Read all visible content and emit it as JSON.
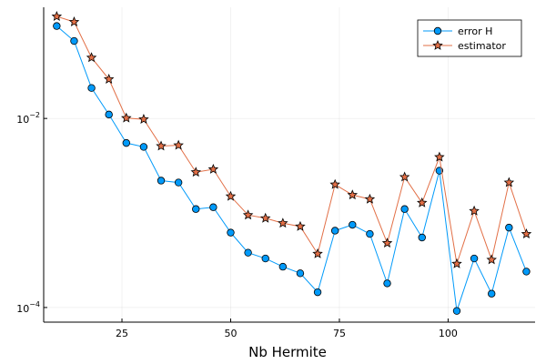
{
  "chart_data": {
    "type": "line",
    "title": "",
    "xlabel": "Nb Hermite",
    "ylabel": "",
    "xlim": [
      7,
      120
    ],
    "ylim": [
      7e-05,
      0.15
    ],
    "yscale": "log",
    "grid": true,
    "legend_position": "top-right",
    "x_ticks": [
      25,
      50,
      75,
      100
    ],
    "x_tick_labels": [
      "25",
      "50",
      "75",
      "100"
    ],
    "y_ticks": [
      0.0001,
      0.01
    ],
    "y_tick_labels": [
      {
        "base": "10",
        "exp": "−4"
      },
      {
        "base": "10",
        "exp": "−2"
      }
    ],
    "x": [
      10,
      14,
      18,
      22,
      26,
      30,
      34,
      38,
      42,
      46,
      50,
      54,
      58,
      62,
      66,
      70,
      74,
      78,
      82,
      86,
      90,
      94,
      98,
      102,
      106,
      110,
      114,
      118
    ],
    "series": [
      {
        "name": "error H",
        "color": "#009AFA",
        "marker": "circle",
        "values": [
          0.095,
          0.066,
          0.021,
          0.011,
          0.0055,
          0.005,
          0.0022,
          0.0021,
          0.0011,
          0.00115,
          0.00062,
          0.00038,
          0.00033,
          0.00027,
          0.00023,
          0.000145,
          0.00065,
          0.00075,
          0.0006,
          0.00018,
          0.0011,
          0.00055,
          0.0028,
          9.2e-05,
          0.00033,
          0.00014,
          0.0007,
          0.00024
        ]
      },
      {
        "name": "estimator",
        "color": "#E26F46",
        "marker": "star",
        "values": [
          0.12,
          0.105,
          0.044,
          0.026,
          0.0101,
          0.0098,
          0.0051,
          0.0052,
          0.0027,
          0.0029,
          0.0015,
          0.00095,
          0.00088,
          0.00078,
          0.00072,
          0.00037,
          0.002,
          0.00155,
          0.0014,
          0.00048,
          0.0024,
          0.00128,
          0.0039,
          0.00029,
          0.00105,
          0.00032,
          0.0021,
          0.0006
        ]
      }
    ]
  }
}
